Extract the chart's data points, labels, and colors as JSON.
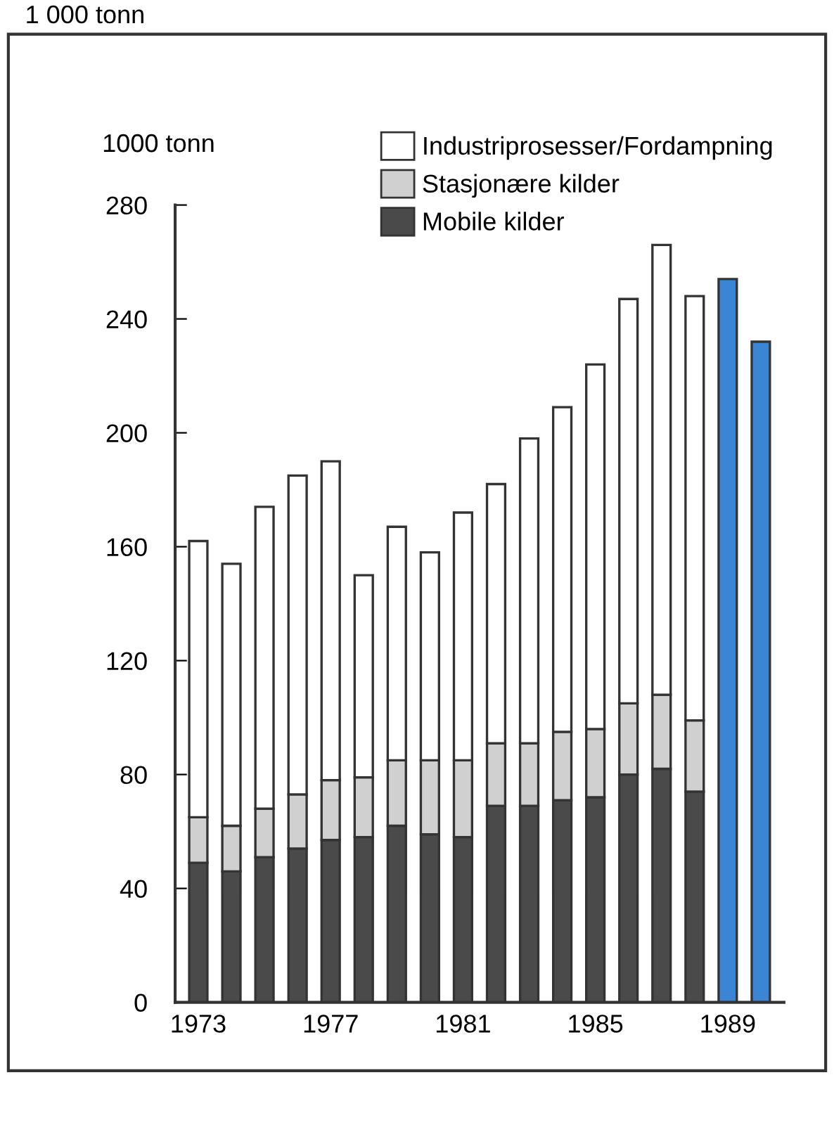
{
  "chart_data": {
    "type": "bar",
    "stacked": true,
    "ylabel": "1000 tonn",
    "annotations": [
      "1 000 tonn"
    ],
    "categories": [
      "1973",
      null,
      null,
      null,
      "1977",
      null,
      null,
      null,
      "1981",
      null,
      null,
      null,
      "1985",
      null,
      null,
      null,
      "1989",
      null
    ],
    "series": [
      {
        "name": "Mobile kilder",
        "color": "#4a4a4a",
        "values": [
          49,
          46,
          51,
          54,
          57,
          58,
          62,
          59,
          58,
          69,
          69,
          71,
          72,
          80,
          82,
          74,
          null,
          null
        ]
      },
      {
        "name": "Stasjonære kilder",
        "color": "#d0d0d0",
        "values": [
          16,
          16,
          17,
          19,
          21,
          21,
          23,
          26,
          27,
          22,
          22,
          24,
          24,
          25,
          26,
          25,
          null,
          null
        ]
      },
      {
        "name": "Industriprosesser/Fordampning",
        "color": "#ffffff",
        "values": [
          97,
          92,
          106,
          112,
          112,
          71,
          82,
          73,
          87,
          91,
          107,
          114,
          128,
          142,
          158,
          149,
          null,
          null
        ]
      },
      {
        "color": "#3a86d4",
        "values": [
          null,
          null,
          null,
          null,
          null,
          null,
          null,
          null,
          null,
          null,
          null,
          null,
          null,
          null,
          null,
          null,
          254,
          232
        ]
      }
    ],
    "ylim": [
      0,
      280
    ],
    "yticks": [
      0,
      40,
      80,
      120,
      160,
      200,
      240,
      280
    ],
    "grid": false,
    "legend": "top right"
  }
}
